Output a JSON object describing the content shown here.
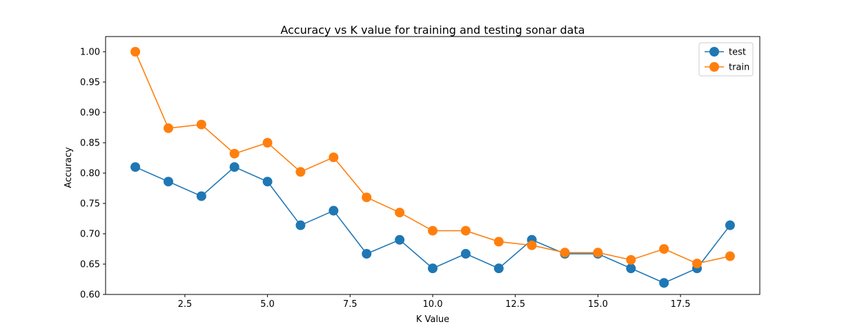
{
  "chart_data": {
    "type": "line",
    "title": "Accuracy vs K value for training and testing sonar data",
    "xlabel": "K Value",
    "ylabel": "Accuracy",
    "xlim": [
      0.1,
      19.9
    ],
    "ylim": [
      0.6,
      1.025
    ],
    "x_ticks": [
      2.5,
      5.0,
      7.5,
      10.0,
      12.5,
      15.0,
      17.5
    ],
    "x_tick_labels": [
      "2.5",
      "5.0",
      "7.5",
      "10.0",
      "12.5",
      "15.0",
      "17.5"
    ],
    "y_ticks": [
      0.6,
      0.65,
      0.7,
      0.75,
      0.8,
      0.85,
      0.9,
      0.95,
      1.0
    ],
    "y_tick_labels": [
      "0.60",
      "0.65",
      "0.70",
      "0.75",
      "0.80",
      "0.85",
      "0.90",
      "0.95",
      "1.00"
    ],
    "grid": false,
    "legend_position": "top-right",
    "x": [
      1,
      2,
      3,
      4,
      5,
      6,
      7,
      8,
      9,
      10,
      11,
      12,
      13,
      14,
      15,
      16,
      17,
      18,
      19
    ],
    "series": [
      {
        "name": "test",
        "color": "#1f77b4",
        "values": [
          0.81,
          0.786,
          0.762,
          0.81,
          0.786,
          0.714,
          0.738,
          0.667,
          0.69,
          0.643,
          0.667,
          0.643,
          0.69,
          0.667,
          0.667,
          0.643,
          0.619,
          0.643,
          0.714
        ]
      },
      {
        "name": "train",
        "color": "#ff7f0e",
        "values": [
          1.0,
          0.874,
          0.88,
          0.832,
          0.85,
          0.802,
          0.826,
          0.76,
          0.735,
          0.705,
          0.705,
          0.687,
          0.681,
          0.669,
          0.669,
          0.657,
          0.675,
          0.651,
          0.663
        ]
      }
    ]
  }
}
